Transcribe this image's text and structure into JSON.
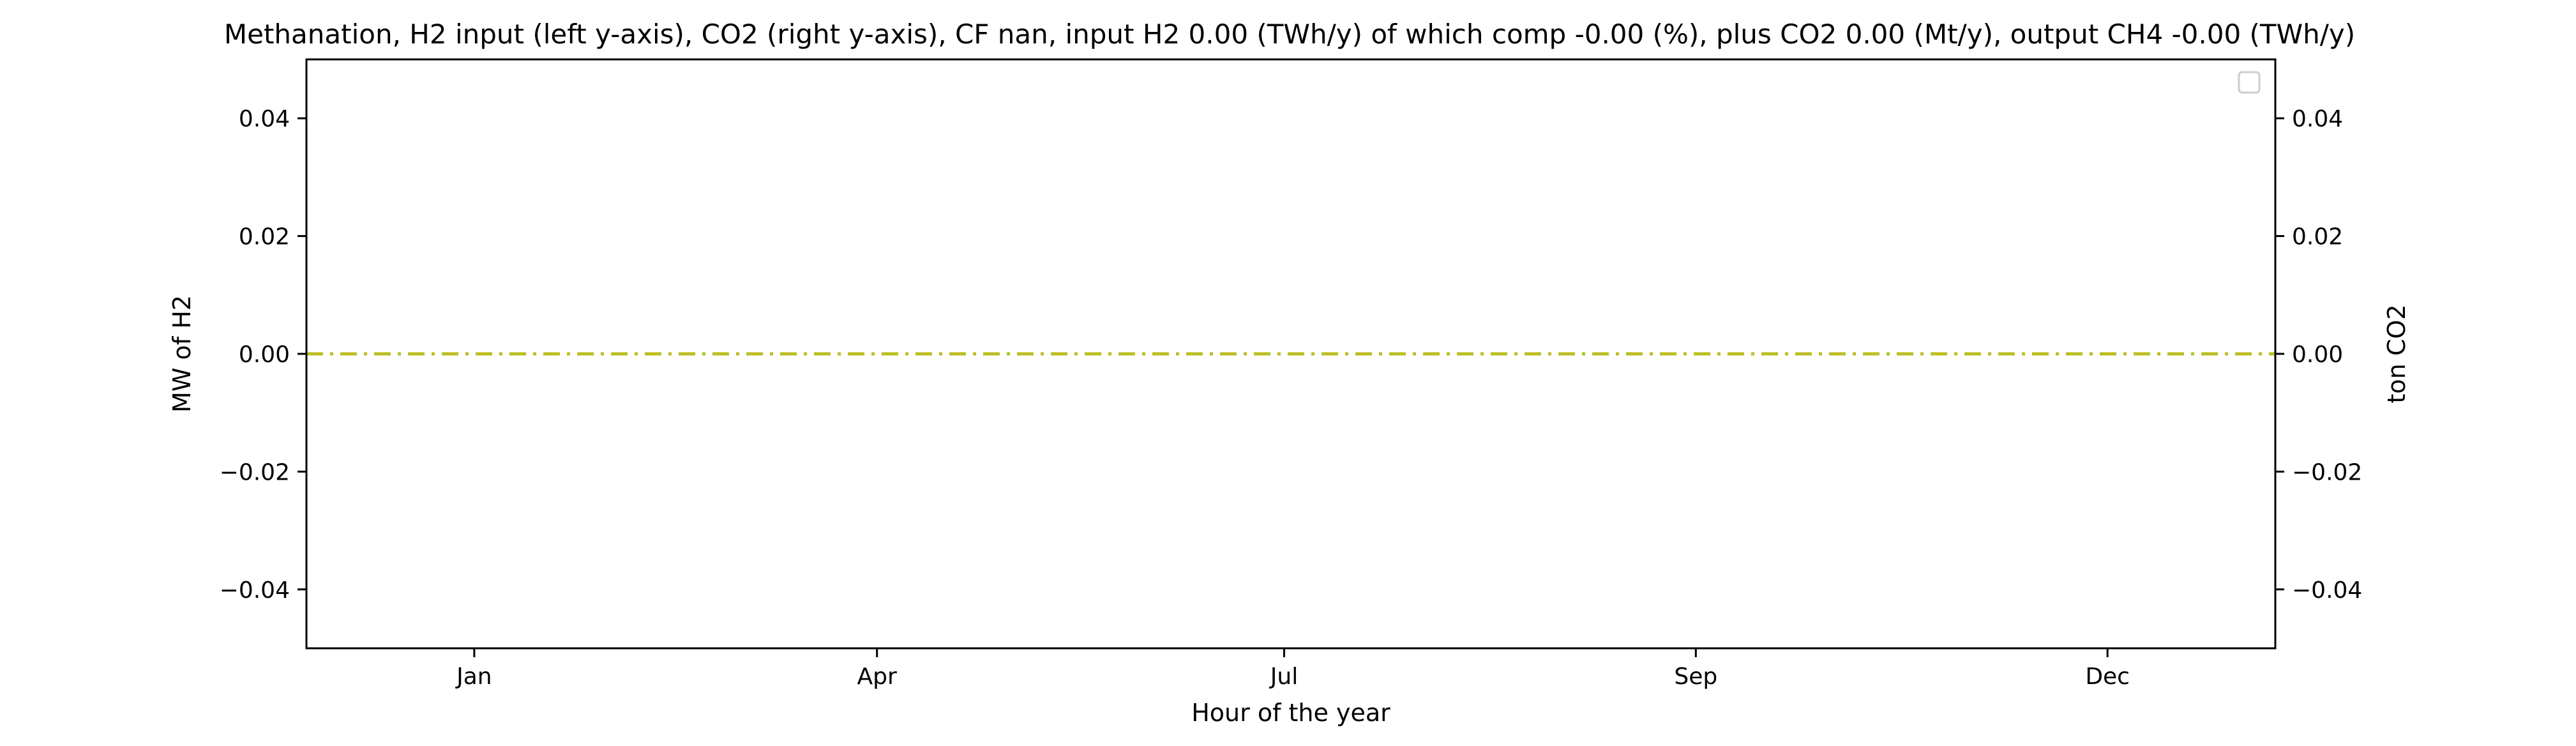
{
  "chart_data": {
    "type": "line",
    "title": "Methanation, H2 input (left y-axis), CO2 (right y-axis), CF nan, input H2 0.00 (TWh/y) of which comp -0.00 (%), plus CO2 0.00 (Mt/y), output CH4 -0.00 (TWh/y)",
    "xlabel": "Hour of the year",
    "ylabel_left": "MW of H2",
    "ylabel_right": "ton CO2",
    "x_ticks": [
      "Jan",
      "Apr",
      "Jul",
      "Sep",
      "Dec"
    ],
    "x_tick_hours": [
      0,
      2160,
      4344,
      6552,
      8760
    ],
    "xlim": [
      -900,
      9660
    ],
    "y_ticks_left": [
      0.04,
      0.02,
      0.0,
      -0.02,
      -0.04
    ],
    "y_tick_labels_left": [
      "0.04",
      "0.02",
      "0.00",
      "−0.02",
      "−0.04"
    ],
    "ylim_left": [
      -0.05,
      0.05
    ],
    "y_ticks_right": [
      0.04,
      0.02,
      0.0,
      -0.02,
      -0.04
    ],
    "y_tick_labels_right": [
      "0.04",
      "0.02",
      "0.00",
      "−0.02",
      "−0.04"
    ],
    "ylim_right": [
      -0.05,
      0.05
    ],
    "grid": false,
    "legend": {
      "position": "upper-right",
      "entries": []
    },
    "series": [
      {
        "axis": "left",
        "color": "#bcbd22",
        "style": "dashdot",
        "x": [
          -900,
          9660
        ],
        "y": [
          0,
          0
        ]
      }
    ]
  }
}
